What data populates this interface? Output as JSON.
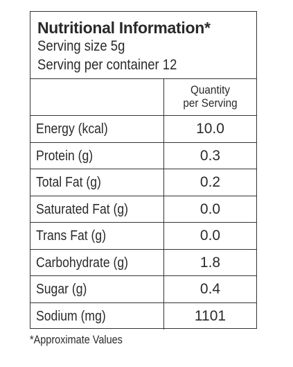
{
  "header": {
    "title": "Nutritional Information*",
    "serving_size": "Serving size 5g",
    "serving_per_container": "Serving per container 12"
  },
  "table": {
    "column_header_line1": "Quantity",
    "column_header_line2": "per Serving",
    "rows": [
      {
        "label": "Energy (kcal)",
        "value": "10.0"
      },
      {
        "label": "Protein (g)",
        "value": "0.3"
      },
      {
        "label": "Total Fat (g)",
        "value": "0.2"
      },
      {
        "label": "Saturated Fat (g)",
        "value": "0.0"
      },
      {
        "label": "Trans Fat (g)",
        "value": "0.0"
      },
      {
        "label": "Carbohydrate (g)",
        "value": "1.8"
      },
      {
        "label": "Sugar (g)",
        "value": "0.4"
      },
      {
        "label": "Sodium (mg)",
        "value": "1101"
      }
    ]
  },
  "footnote": "*Approximate Values"
}
